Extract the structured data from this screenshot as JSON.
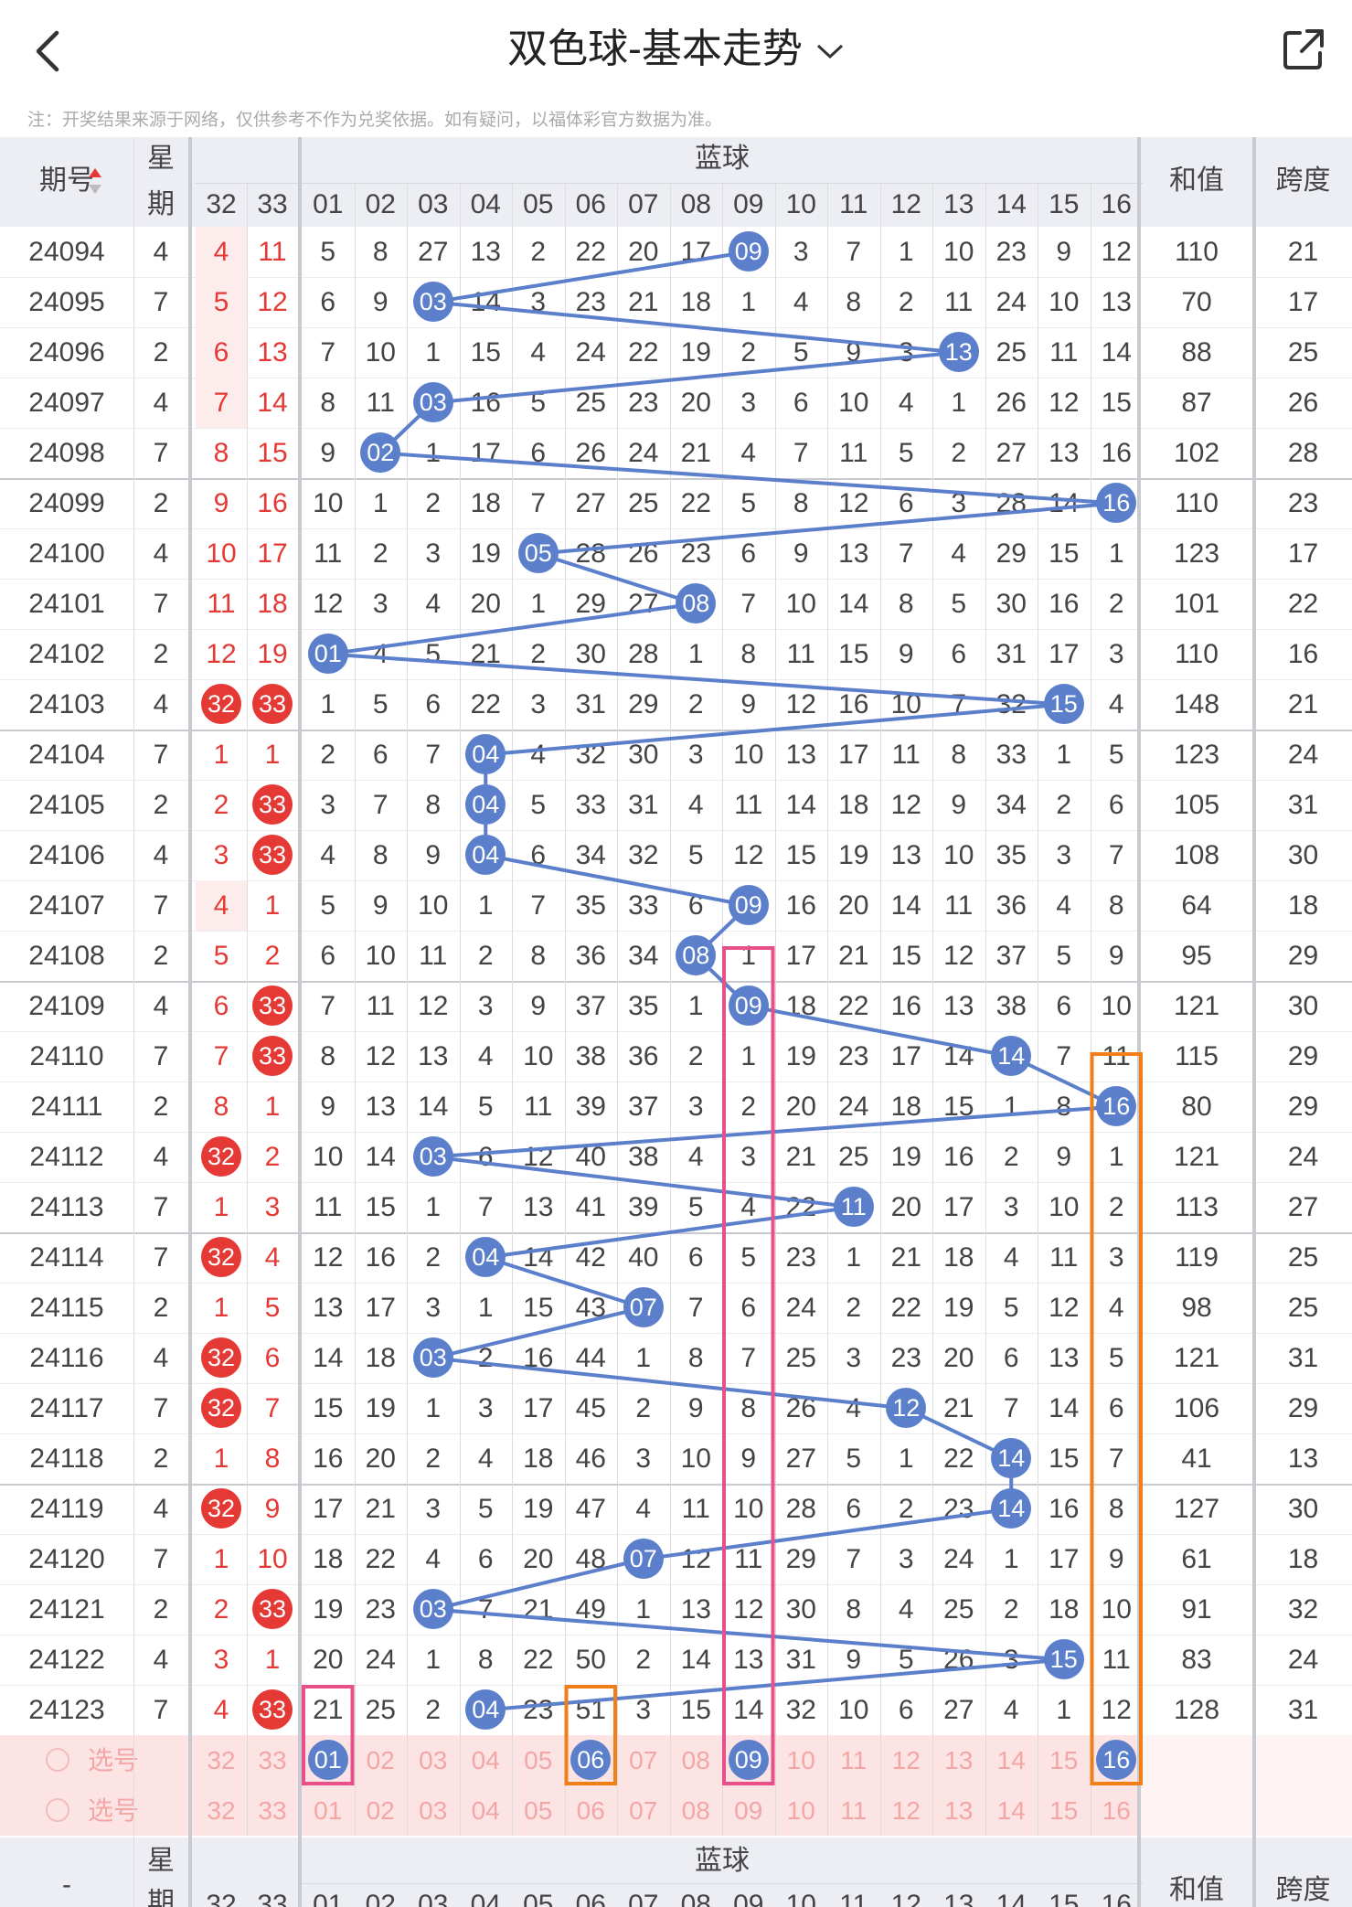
{
  "header": {
    "title": "双色球-基本走势",
    "notice": "注：开奖结果来源于网络，仅供参考不作为兑奖依据。如有疑问，以福体彩官方数据为准。"
  },
  "columns": {
    "issue": "期号",
    "weekday_line1": "星",
    "weekday_line2": "期",
    "blue_group": "蓝球",
    "sum": "和值",
    "span": "跨度",
    "red_tail": [
      "32",
      "33"
    ],
    "blue": [
      "01",
      "02",
      "03",
      "04",
      "05",
      "06",
      "07",
      "08",
      "09",
      "10",
      "11",
      "12",
      "13",
      "14",
      "15",
      "16"
    ]
  },
  "rows": [
    {
      "issue": "24094",
      "wd": "4",
      "r32": "4",
      "r33": "11",
      "blue": [
        5,
        8,
        27,
        13,
        2,
        22,
        20,
        17,
        "09",
        3,
        7,
        1,
        10,
        23,
        9,
        12
      ],
      "hit": 9,
      "sum": "110",
      "span": "21"
    },
    {
      "issue": "24095",
      "wd": "7",
      "r32": "5",
      "r33": "12",
      "blue": [
        6,
        9,
        "03",
        14,
        3,
        23,
        21,
        18,
        1,
        4,
        8,
        2,
        11,
        24,
        10,
        13
      ],
      "hit": 3,
      "sum": "70",
      "span": "17"
    },
    {
      "issue": "24096",
      "wd": "2",
      "r32": "6",
      "r33": "13",
      "blue": [
        7,
        10,
        1,
        15,
        4,
        24,
        22,
        19,
        2,
        5,
        9,
        3,
        "13",
        25,
        11,
        14
      ],
      "hit": 13,
      "sum": "88",
      "span": "25"
    },
    {
      "issue": "24097",
      "wd": "4",
      "r32": "7",
      "r33": "14",
      "blue": [
        8,
        11,
        "03",
        16,
        5,
        25,
        23,
        20,
        3,
        6,
        10,
        4,
        1,
        26,
        12,
        15
      ],
      "hit": 3,
      "sum": "87",
      "span": "26"
    },
    {
      "issue": "24098",
      "wd": "7",
      "r32": "8",
      "r33": "15",
      "blue": [
        9,
        "02",
        1,
        17,
        6,
        26,
        24,
        21,
        4,
        7,
        11,
        5,
        2,
        27,
        13,
        16
      ],
      "hit": 2,
      "sum": "102",
      "span": "28"
    },
    {
      "issue": "24099",
      "wd": "2",
      "r32": "9",
      "r33": "16",
      "blue": [
        10,
        1,
        2,
        18,
        7,
        27,
        25,
        22,
        5,
        8,
        12,
        6,
        3,
        28,
        14,
        "16"
      ],
      "hit": 16,
      "sum": "110",
      "span": "23"
    },
    {
      "issue": "24100",
      "wd": "4",
      "r32": "10",
      "r33": "17",
      "blue": [
        11,
        2,
        3,
        19,
        "05",
        28,
        26,
        23,
        6,
        9,
        13,
        7,
        4,
        29,
        15,
        1
      ],
      "hit": 5,
      "sum": "123",
      "span": "17"
    },
    {
      "issue": "24101",
      "wd": "7",
      "r32": "11",
      "r33": "18",
      "blue": [
        12,
        3,
        4,
        20,
        1,
        29,
        27,
        "08",
        7,
        10,
        14,
        8,
        5,
        30,
        16,
        2
      ],
      "hit": 8,
      "sum": "101",
      "span": "22"
    },
    {
      "issue": "24102",
      "wd": "2",
      "r32": "12",
      "r33": "19",
      "blue": [
        "01",
        4,
        5,
        21,
        2,
        30,
        28,
        1,
        8,
        11,
        15,
        9,
        6,
        31,
        17,
        3
      ],
      "hit": 1,
      "sum": "110",
      "span": "16"
    },
    {
      "issue": "24103",
      "wd": "4",
      "r32": "32",
      "r33": "33",
      "redball32": true,
      "redball33": true,
      "blue": [
        1,
        5,
        6,
        22,
        3,
        31,
        29,
        2,
        9,
        12,
        16,
        10,
        7,
        32,
        "15",
        4
      ],
      "hit": 15,
      "sum": "148",
      "span": "21"
    },
    {
      "issue": "24104",
      "wd": "7",
      "r32": "1",
      "r33": "1",
      "blue": [
        2,
        6,
        7,
        "04",
        4,
        32,
        30,
        3,
        10,
        13,
        17,
        11,
        8,
        33,
        1,
        5
      ],
      "hit": 4,
      "sum": "123",
      "span": "24"
    },
    {
      "issue": "24105",
      "wd": "2",
      "r32": "2",
      "r33": "33",
      "redball33": true,
      "blue": [
        3,
        7,
        8,
        "04",
        5,
        33,
        31,
        4,
        11,
        14,
        18,
        12,
        9,
        34,
        2,
        6
      ],
      "hit": 4,
      "sum": "105",
      "span": "31"
    },
    {
      "issue": "24106",
      "wd": "4",
      "r32": "3",
      "r33": "33",
      "redball33": true,
      "blue": [
        4,
        8,
        9,
        "04",
        6,
        34,
        32,
        5,
        12,
        15,
        19,
        13,
        10,
        35,
        3,
        7
      ],
      "hit": 4,
      "sum": "108",
      "span": "30"
    },
    {
      "issue": "24107",
      "wd": "7",
      "r32": "4",
      "r33": "1",
      "blue": [
        5,
        9,
        10,
        1,
        7,
        35,
        33,
        6,
        "09",
        16,
        20,
        14,
        11,
        36,
        4,
        8
      ],
      "hit": 9,
      "sum": "64",
      "span": "18"
    },
    {
      "issue": "24108",
      "wd": "2",
      "r32": "5",
      "r33": "2",
      "blue": [
        6,
        10,
        11,
        2,
        8,
        36,
        34,
        "08",
        1,
        17,
        21,
        15,
        12,
        37,
        5,
        9
      ],
      "hit": 8,
      "sum": "95",
      "span": "29"
    },
    {
      "issue": "24109",
      "wd": "4",
      "r32": "6",
      "r33": "33",
      "redball33": true,
      "blue": [
        7,
        11,
        12,
        3,
        9,
        37,
        35,
        1,
        "09",
        18,
        22,
        16,
        13,
        38,
        6,
        10
      ],
      "hit": 9,
      "sum": "121",
      "span": "30"
    },
    {
      "issue": "24110",
      "wd": "7",
      "r32": "7",
      "r33": "33",
      "redball33": true,
      "blue": [
        8,
        12,
        13,
        4,
        10,
        38,
        36,
        2,
        1,
        19,
        23,
        17,
        14,
        "14",
        7,
        11
      ],
      "hit": 14,
      "sum": "115",
      "span": "29"
    },
    {
      "issue": "24111",
      "wd": "2",
      "r32": "8",
      "r33": "1",
      "blue": [
        9,
        13,
        14,
        5,
        11,
        39,
        37,
        3,
        2,
        20,
        24,
        18,
        15,
        1,
        8,
        "16"
      ],
      "hit": 16,
      "sum": "80",
      "span": "29"
    },
    {
      "issue": "24112",
      "wd": "4",
      "r32": "32",
      "r33": "2",
      "redball32": true,
      "blue": [
        10,
        14,
        "03",
        6,
        12,
        40,
        38,
        4,
        3,
        21,
        25,
        19,
        16,
        2,
        9,
        1
      ],
      "hit": 3,
      "sum": "121",
      "span": "24"
    },
    {
      "issue": "24113",
      "wd": "7",
      "r32": "1",
      "r33": "3",
      "blue": [
        11,
        15,
        1,
        7,
        13,
        41,
        39,
        5,
        4,
        22,
        "11",
        20,
        17,
        3,
        10,
        2
      ],
      "hit": 11,
      "sum": "113",
      "span": "27"
    },
    {
      "issue": "24114",
      "wd": "7",
      "r32": "32",
      "r33": "4",
      "redball32": true,
      "blue": [
        12,
        16,
        2,
        "04",
        14,
        42,
        40,
        6,
        5,
        23,
        1,
        21,
        18,
        4,
        11,
        3
      ],
      "hit": 4,
      "sum": "119",
      "span": "25"
    },
    {
      "issue": "24115",
      "wd": "2",
      "r32": "1",
      "r33": "5",
      "blue": [
        13,
        17,
        3,
        1,
        15,
        43,
        "07",
        7,
        6,
        24,
        2,
        22,
        19,
        5,
        12,
        4
      ],
      "hit": 7,
      "sum": "98",
      "span": "25"
    },
    {
      "issue": "24116",
      "wd": "4",
      "r32": "32",
      "r33": "6",
      "redball32": true,
      "blue": [
        14,
        18,
        "03",
        2,
        16,
        44,
        1,
        8,
        7,
        25,
        3,
        23,
        20,
        6,
        13,
        5
      ],
      "hit": 3,
      "sum": "121",
      "span": "31"
    },
    {
      "issue": "24117",
      "wd": "7",
      "r32": "32",
      "r33": "7",
      "redball32": true,
      "blue": [
        15,
        19,
        1,
        3,
        17,
        45,
        2,
        9,
        8,
        26,
        4,
        "12",
        21,
        7,
        14,
        6
      ],
      "hit": 12,
      "sum": "106",
      "span": "29"
    },
    {
      "issue": "24118",
      "wd": "2",
      "r32": "1",
      "r33": "8",
      "blue": [
        16,
        20,
        2,
        4,
        18,
        46,
        3,
        10,
        9,
        27,
        5,
        1,
        22,
        "14",
        15,
        7
      ],
      "hit": 14,
      "sum": "41",
      "span": "13"
    },
    {
      "issue": "24119",
      "wd": "4",
      "r32": "32",
      "r33": "9",
      "redball32": true,
      "blue": [
        17,
        21,
        3,
        5,
        19,
        47,
        4,
        11,
        10,
        28,
        6,
        2,
        23,
        "14",
        16,
        8
      ],
      "hit": 14,
      "sum": "127",
      "span": "30"
    },
    {
      "issue": "24120",
      "wd": "7",
      "r32": "1",
      "r33": "10",
      "blue": [
        18,
        22,
        4,
        6,
        20,
        48,
        "07",
        12,
        11,
        29,
        7,
        3,
        24,
        1,
        17,
        9
      ],
      "hit": 7,
      "sum": "61",
      "span": "18"
    },
    {
      "issue": "24121",
      "wd": "2",
      "r32": "2",
      "r33": "33",
      "redball33": true,
      "blue": [
        19,
        23,
        "03",
        7,
        21,
        49,
        1,
        13,
        12,
        30,
        8,
        4,
        25,
        2,
        18,
        10
      ],
      "hit": 3,
      "sum": "91",
      "span": "32"
    },
    {
      "issue": "24122",
      "wd": "4",
      "r32": "3",
      "r33": "1",
      "blue": [
        20,
        24,
        1,
        8,
        22,
        50,
        2,
        14,
        13,
        31,
        9,
        5,
        26,
        3,
        "15",
        11
      ],
      "hit": 15,
      "sum": "83",
      "span": "24"
    },
    {
      "issue": "24123",
      "wd": "7",
      "r32": "4",
      "r33": "33",
      "redball33": true,
      "blue": [
        21,
        25,
        2,
        "04",
        23,
        51,
        3,
        15,
        14,
        32,
        10,
        6,
        27,
        4,
        1,
        12
      ],
      "hit": 4,
      "sum": "128",
      "span": "31"
    }
  ],
  "picker": {
    "label": "选号",
    "row1_selected": [
      "01",
      "06",
      "09",
      "16"
    ],
    "row2_selected": []
  },
  "footer": {
    "issue": "-",
    "weekday_line1": "星",
    "weekday_line2": "期",
    "blue_group": "蓝球",
    "sum": "和值",
    "span": "跨度"
  },
  "colors": {
    "red": "#e53935",
    "blue_ball": "#5b7fcb",
    "pink_highlight": "#e8508a",
    "orange_highlight": "#f07f1a"
  }
}
